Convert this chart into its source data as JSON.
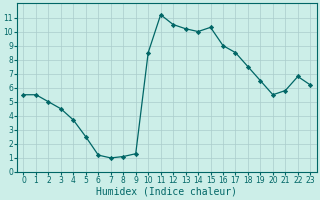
{
  "x_values": [
    0,
    1,
    2,
    3,
    4,
    5,
    6,
    7,
    8,
    9,
    10,
    11,
    12,
    13,
    14,
    15,
    16,
    17,
    18,
    19,
    20,
    21,
    22,
    23
  ],
  "y_values": [
    5.5,
    5.5,
    5.0,
    4.5,
    3.7,
    2.5,
    1.2,
    1.0,
    1.1,
    1.3,
    8.5,
    11.2,
    10.5,
    10.2,
    10.0,
    10.3,
    9.0,
    8.5,
    7.5,
    6.5,
    5.5,
    5.8,
    6.8,
    6.2
  ],
  "line_color": "#006666",
  "marker": "D",
  "markersize": 2.2,
  "linewidth": 0.9,
  "bg_color": "#cceee8",
  "grid_color": "#aacccc",
  "xlabel": "Humidex (Indice chaleur)",
  "xlim": [
    -0.5,
    23.5
  ],
  "ylim": [
    0,
    12
  ],
  "yticks": [
    0,
    1,
    2,
    3,
    4,
    5,
    6,
    7,
    8,
    9,
    10,
    11
  ],
  "xticks": [
    0,
    1,
    2,
    3,
    4,
    5,
    6,
    7,
    8,
    9,
    10,
    11,
    12,
    13,
    14,
    15,
    16,
    17,
    18,
    19,
    20,
    21,
    22,
    23
  ],
  "tick_fontsize": 5.5,
  "xlabel_fontsize": 7.0
}
